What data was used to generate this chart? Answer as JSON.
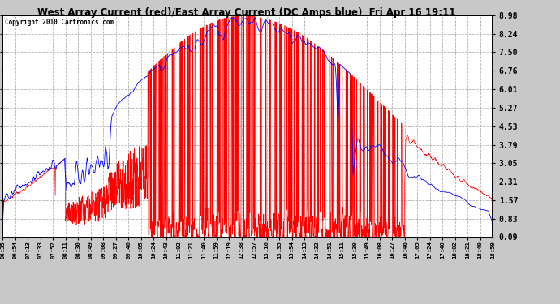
{
  "title": "West Array Current (red)/East Array Current (DC Amps blue)  Fri Apr 16 19:11",
  "copyright": "Copyright 2010 Cartronics.com",
  "yticks": [
    0.09,
    0.83,
    1.57,
    2.31,
    3.05,
    3.79,
    4.53,
    5.27,
    6.01,
    6.76,
    7.5,
    8.24,
    8.98
  ],
  "ylim": [
    0.09,
    8.98
  ],
  "xtick_labels": [
    "06:35",
    "06:54",
    "07:13",
    "07:33",
    "07:52",
    "08:11",
    "08:30",
    "08:49",
    "09:08",
    "09:27",
    "09:46",
    "10:05",
    "10:24",
    "10:43",
    "11:02",
    "11:21",
    "11:40",
    "11:59",
    "12:19",
    "12:38",
    "12:57",
    "13:16",
    "13:35",
    "13:54",
    "14:13",
    "14:32",
    "14:51",
    "15:11",
    "15:30",
    "15:49",
    "16:08",
    "16:27",
    "16:46",
    "17:05",
    "17:24",
    "17:40",
    "18:02",
    "18:21",
    "18:40",
    "18:59"
  ],
  "bg_color": "#c8c8c8",
  "plot_bg": "#ffffff",
  "grid_color": "#aaaaaa",
  "red_color": "#ff0000",
  "blue_color": "#0000ff"
}
